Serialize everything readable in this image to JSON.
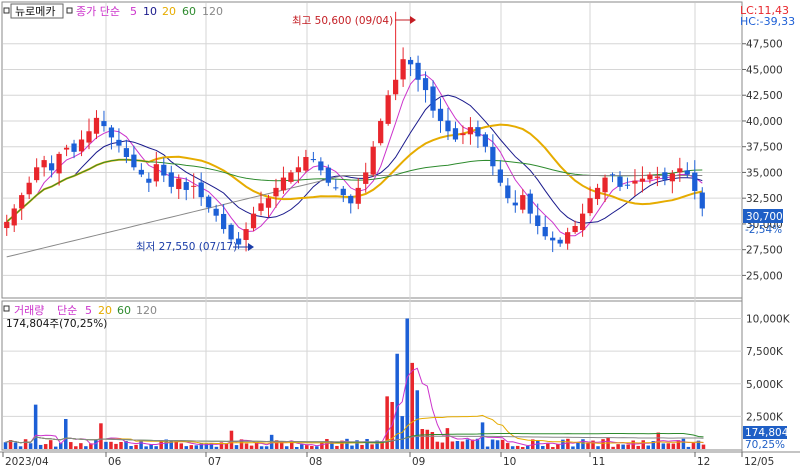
{
  "price_panel": {
    "stock_name": "뉴로메카",
    "ma_title": "종가 단순",
    "ma_periods": [
      "5",
      "10",
      "20",
      "60",
      "120"
    ],
    "ma_colors": [
      "#cc33cc",
      "#1a1a8c",
      "#e6ac00",
      "#2e8b2e",
      "#888888"
    ],
    "lc_label": "LC:11,43",
    "hc_label": "HC:-39,33",
    "current_price": "30,700",
    "change_pct": "-2,54%",
    "high_annotation": "최고 50,600 (09/04)",
    "low_annotation": "최저 27,550 (07/17)"
  },
  "volume_panel": {
    "title": "거래량",
    "ma_title": "단순",
    "ma_periods": [
      "5",
      "20",
      "60",
      "120"
    ],
    "ma_colors": [
      "#cc33cc",
      "#e6ac00",
      "#2e8b2e",
      "#888888"
    ],
    "info": "174,804주(70,25%)",
    "current_volume": "174,804",
    "current_pct": "70,25%"
  },
  "x_axis": {
    "labels": [
      "2023/04",
      "06",
      "07",
      "08",
      "09",
      "10",
      "11",
      "12",
      "12/05"
    ]
  },
  "colors": {
    "up": "#e8262c",
    "down": "#1c5fd6",
    "grid": "#d6d6d6",
    "badge": "#1f5fc6"
  },
  "chart_data": [
    {
      "type": "candlestick",
      "title": "뉴로메카",
      "y_ticks": [
        "25,000",
        "27,500",
        "30,000",
        "32,500",
        "35,000",
        "37,500",
        "40,000",
        "42,500",
        "45,000",
        "47,500"
      ],
      "y_tick_values": [
        25000,
        27500,
        30000,
        32500,
        35000,
        37500,
        40000,
        42500,
        45000,
        47500
      ],
      "ylim": [
        23000,
        50000
      ],
      "high": {
        "value": 50600,
        "date": "09/04"
      },
      "low": {
        "value": 27550,
        "date": "07/17"
      },
      "last_close": 30700,
      "close_series": [
        30200,
        31500,
        32800,
        34000,
        35500,
        36200,
        35200,
        36800,
        37400,
        37000,
        38200,
        39000,
        40300,
        39500,
        38400,
        37600,
        36500,
        35500,
        34800,
        34000,
        35800,
        34700,
        33600,
        34400,
        33300,
        33700,
        32600,
        31600,
        30800,
        29500,
        28500,
        28000,
        29500,
        31000,
        32000,
        32500,
        33500,
        34500,
        35000,
        35500,
        36500,
        36200,
        35200,
        34000,
        33500,
        32800,
        32000,
        33500,
        35000,
        37500,
        40000,
        42500,
        44000,
        46000,
        45500,
        44000,
        43000,
        41000,
        40000,
        39000,
        38200,
        38800,
        39400,
        38500,
        37500,
        35600,
        34000,
        32500,
        31800,
        32800,
        31000,
        29800,
        28800,
        28400,
        28100,
        29200,
        29800,
        31000,
        32500,
        33500,
        34500,
        34800,
        33600,
        33800,
        34200,
        34400,
        34800,
        34600,
        34300,
        34900,
        35400,
        34800,
        33200,
        31500
      ],
      "ma_series_names": [
        "5",
        "10",
        "20",
        "60",
        "120"
      ]
    },
    {
      "type": "bar",
      "title": "거래량",
      "y_ticks": [
        "2,500K",
        "5,000K",
        "7,500K",
        "10,000K"
      ],
      "y_tick_values": [
        2500,
        5000,
        7500,
        10000
      ],
      "ylim": [
        0,
        10500
      ],
      "unit": "K",
      "spike": {
        "value": 10000,
        "month": "09"
      },
      "last_value_k": 174.804,
      "last_pct": "70,25%"
    }
  ]
}
